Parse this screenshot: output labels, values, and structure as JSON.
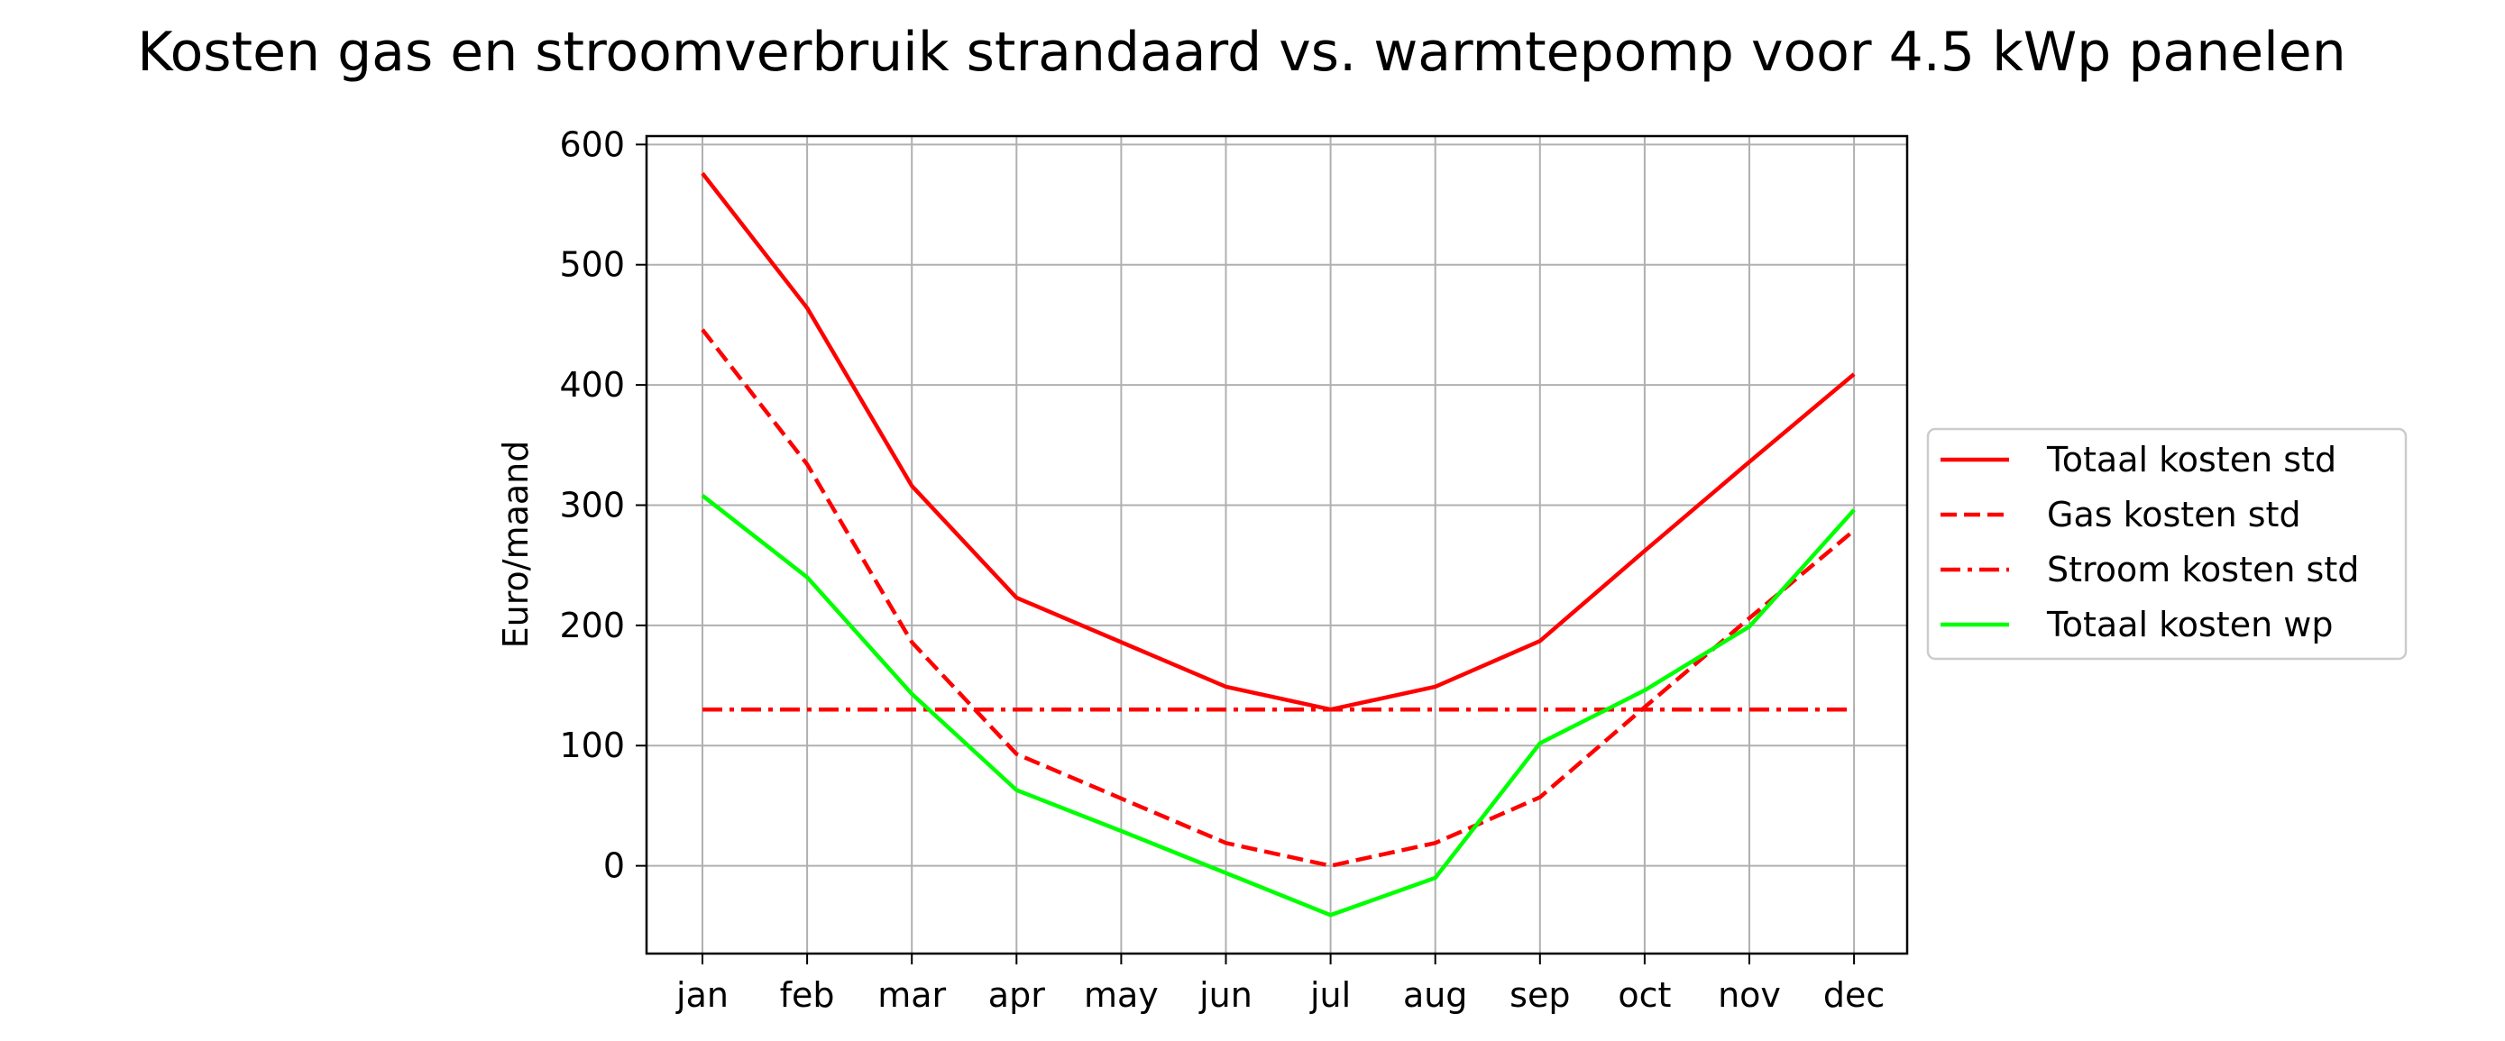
{
  "chart_data": {
    "type": "line",
    "title": "Kosten gas en stroomverbruik strandaard vs. warmtepomp voor 4.5 kWp panelen",
    "xlabel": "",
    "ylabel": "Euro/maand",
    "categories": [
      "jan",
      "feb",
      "mar",
      "apr",
      "may",
      "jun",
      "jul",
      "aug",
      "sep",
      "oct",
      "nov",
      "dec"
    ],
    "ylim": [
      -73,
      607
    ],
    "yticks": [
      0,
      100,
      200,
      300,
      400,
      500,
      600
    ],
    "grid": true,
    "legend_position": "center-right, outside plot",
    "series": [
      {
        "name": "Totaal kosten std",
        "color": "#ff0000",
        "linestyle": "solid",
        "values": [
          576,
          464,
          316,
          223,
          186,
          149,
          130,
          149,
          187,
          262,
          336,
          409
        ]
      },
      {
        "name": "Gas kosten std",
        "color": "#ff0000",
        "linestyle": "dashed",
        "values": [
          446,
          334,
          186,
          93,
          56,
          19,
          0,
          19,
          57,
          132,
          206,
          279
        ]
      },
      {
        "name": "Stroom kosten std",
        "color": "#ff0000",
        "linestyle": "dashdot",
        "values": [
          130,
          130,
          130,
          130,
          130,
          130,
          130,
          130,
          130,
          130,
          130,
          130
        ]
      },
      {
        "name": "Totaal kosten wp",
        "color": "#00ff00",
        "linestyle": "solid",
        "values": [
          308,
          240,
          143,
          63,
          29,
          -6,
          -41,
          -10,
          102,
          146,
          199,
          296
        ]
      }
    ]
  }
}
